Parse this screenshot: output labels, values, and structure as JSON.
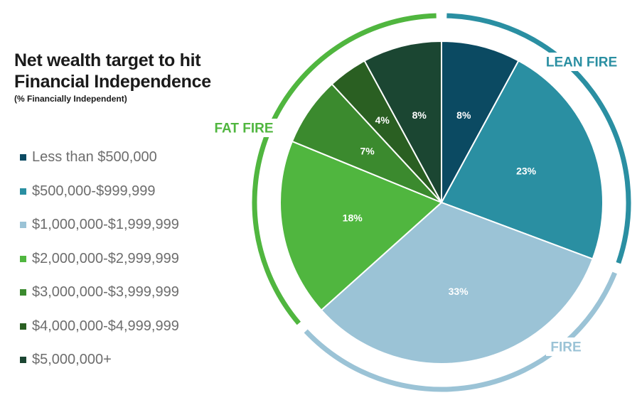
{
  "chart_data": {
    "type": "pie",
    "title_lines": [
      "Net wealth target to hit",
      "Financial Independence"
    ],
    "subtitle": "(% Financially Independent)",
    "unit": "%",
    "categories": [
      "Less than $500,000",
      "$500,000-$999,999",
      "$1,000,000-$1,999,999",
      "$2,000,000-$2,999,999",
      "$3,000,000-$3,999,999",
      "$4,000,000-$4,999,999",
      "$5,000,000+"
    ],
    "values": [
      8,
      23,
      33,
      18,
      7,
      4,
      8
    ],
    "colors": [
      "#0b4a62",
      "#2a8fa2",
      "#9bc3d6",
      "#50b63f",
      "#3b8a2e",
      "#2a5f22",
      "#1b4632"
    ],
    "legend_placement": "left",
    "groups": [
      {
        "name": "LEAN FIRE",
        "color": "#2a8fa2",
        "slices": [
          0,
          1
        ]
      },
      {
        "name": "FIRE",
        "color": "#9bc3d6",
        "slices": [
          2
        ]
      },
      {
        "name": "FAT FIRE",
        "color": "#50b63f",
        "slices": [
          3,
          4,
          5,
          6
        ]
      }
    ]
  }
}
